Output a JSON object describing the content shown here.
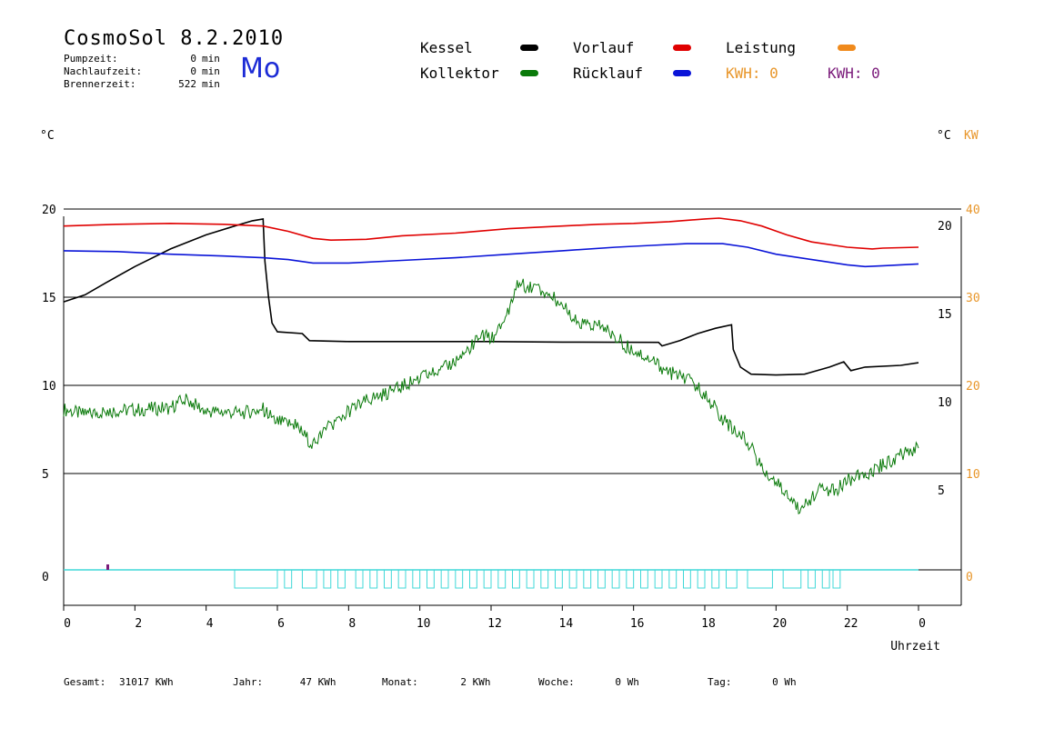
{
  "header": {
    "title": "CosmoSol 8.2.2010",
    "weekday": "Mo",
    "stats": [
      {
        "label": "Pumpzeit:",
        "value": "0",
        "unit": "min"
      },
      {
        "label": "Nachlaufzeit:",
        "value": "0",
        "unit": "min"
      },
      {
        "label": "Brennerzeit:",
        "value": "522",
        "unit": "min"
      }
    ]
  },
  "legend": [
    {
      "label": "Kessel",
      "color": "#000000"
    },
    {
      "label": "Vorlauf",
      "color": "#e00000"
    },
    {
      "label": "Leistung",
      "color": "#f08a1c"
    },
    {
      "label": "Kollektor",
      "color": "#0a7a0a"
    },
    {
      "label": "Rücklauf",
      "color": "#0a14d8"
    }
  ],
  "kwh": [
    {
      "label": "KWH:",
      "value": "0",
      "color": "#e8962a"
    },
    {
      "label": "KWH:",
      "value": "0",
      "color": "#7a1a7a"
    }
  ],
  "axes": {
    "left_unit": "°C",
    "right_unit": "°C",
    "right_unit2": "KW",
    "xlabel": "Uhrzeit"
  },
  "footer": [
    {
      "label": "Gesamt:",
      "value": "31017 KWh"
    },
    {
      "label": "Jahr:",
      "value": "47 KWh"
    },
    {
      "label": "Monat:",
      "value": "2 KWh"
    },
    {
      "label": "Woche:",
      "value": "0 Wh"
    },
    {
      "label": "Tag:",
      "value": "0 Wh"
    }
  ],
  "colors": {
    "grid": "#000000",
    "kw_axis": "#e8962a",
    "pump": "#40d8d8",
    "marker": "#7a1a7a"
  },
  "chart_data": {
    "type": "line",
    "xlabel": "Uhrzeit",
    "x_ticks": [
      "0",
      "2",
      "4",
      "6",
      "8",
      "10",
      "12",
      "14",
      "16",
      "18",
      "20",
      "22",
      "0"
    ],
    "xlim": [
      0,
      24
    ],
    "ylim": [
      -1.5,
      21
    ],
    "y_left_ticks": [
      "20",
      "15",
      "10",
      "5",
      "0"
    ],
    "y_right_c_ticks": [
      "20",
      "15",
      "10",
      "5"
    ],
    "y_right_kw_ticks": [
      "40",
      "30",
      "20",
      "10",
      "0"
    ],
    "grid": true,
    "series": [
      {
        "name": "Kessel",
        "color": "#000000",
        "points": [
          [
            0,
            15.2
          ],
          [
            0.6,
            15.6
          ],
          [
            1.2,
            16.3
          ],
          [
            2,
            17.2
          ],
          [
            3,
            18.2
          ],
          [
            4,
            19.0
          ],
          [
            4.8,
            19.5
          ],
          [
            5.3,
            19.8
          ],
          [
            5.6,
            19.9
          ],
          [
            5.65,
            17.5
          ],
          [
            5.75,
            15.5
          ],
          [
            5.85,
            14.0
          ],
          [
            6.0,
            13.5
          ],
          [
            6.7,
            13.4
          ],
          [
            6.9,
            13.0
          ],
          [
            8,
            12.95
          ],
          [
            10,
            12.95
          ],
          [
            12,
            12.95
          ],
          [
            14,
            12.92
          ],
          [
            16.7,
            12.9
          ],
          [
            16.8,
            12.7
          ],
          [
            17.3,
            13.0
          ],
          [
            17.8,
            13.4
          ],
          [
            18.3,
            13.7
          ],
          [
            18.75,
            13.9
          ],
          [
            18.8,
            12.5
          ],
          [
            19.0,
            11.5
          ],
          [
            19.3,
            11.1
          ],
          [
            20,
            11.05
          ],
          [
            20.8,
            11.1
          ],
          [
            21.5,
            11.5
          ],
          [
            21.9,
            11.8
          ],
          [
            22.1,
            11.3
          ],
          [
            22.5,
            11.5
          ],
          [
            23.5,
            11.6
          ],
          [
            24,
            11.75
          ]
        ]
      },
      {
        "name": "Vorlauf",
        "color": "#e00000",
        "points": [
          [
            0,
            19.5
          ],
          [
            1.5,
            19.6
          ],
          [
            3,
            19.65
          ],
          [
            4.5,
            19.6
          ],
          [
            5.6,
            19.5
          ],
          [
            6.3,
            19.2
          ],
          [
            7.0,
            18.8
          ],
          [
            7.5,
            18.7
          ],
          [
            8.5,
            18.75
          ],
          [
            9.5,
            18.95
          ],
          [
            11,
            19.1
          ],
          [
            12.5,
            19.35
          ],
          [
            14,
            19.5
          ],
          [
            15,
            19.6
          ],
          [
            16,
            19.65
          ],
          [
            17,
            19.75
          ],
          [
            18,
            19.9
          ],
          [
            18.4,
            19.95
          ],
          [
            19,
            19.8
          ],
          [
            19.6,
            19.5
          ],
          [
            20.3,
            19.0
          ],
          [
            21,
            18.6
          ],
          [
            22,
            18.3
          ],
          [
            22.7,
            18.2
          ],
          [
            23,
            18.25
          ],
          [
            24,
            18.3
          ]
        ]
      },
      {
        "name": "Rücklauf",
        "color": "#0a14d8",
        "points": [
          [
            0,
            18.1
          ],
          [
            1.5,
            18.05
          ],
          [
            3,
            17.9
          ],
          [
            4.5,
            17.8
          ],
          [
            5.6,
            17.7
          ],
          [
            6.3,
            17.6
          ],
          [
            7.0,
            17.4
          ],
          [
            8,
            17.4
          ],
          [
            9.5,
            17.55
          ],
          [
            11,
            17.7
          ],
          [
            12.5,
            17.9
          ],
          [
            14,
            18.1
          ],
          [
            15.5,
            18.3
          ],
          [
            16.5,
            18.4
          ],
          [
            17.5,
            18.5
          ],
          [
            18.5,
            18.5
          ],
          [
            19.2,
            18.3
          ],
          [
            20,
            17.9
          ],
          [
            21,
            17.6
          ],
          [
            22,
            17.3
          ],
          [
            22.5,
            17.2
          ],
          [
            23,
            17.25
          ],
          [
            24,
            17.35
          ]
        ]
      },
      {
        "name": "Kollektor",
        "color": "#0a7a0a",
        "points": [
          [
            0,
            9.1
          ],
          [
            0.6,
            8.8
          ],
          [
            1.2,
            9.0
          ],
          [
            2.2,
            9.1
          ],
          [
            3.0,
            9.2
          ],
          [
            3.4,
            9.7
          ],
          [
            4.0,
            9.0
          ],
          [
            5.0,
            8.9
          ],
          [
            5.6,
            9.1
          ],
          [
            6.0,
            8.4
          ],
          [
            6.5,
            8.2
          ],
          [
            7.0,
            7.1
          ],
          [
            7.4,
            8.0
          ],
          [
            8.0,
            9.0
          ],
          [
            8.6,
            9.7
          ],
          [
            9.2,
            10.1
          ],
          [
            10,
            10.9
          ],
          [
            10.6,
            11.3
          ],
          [
            11.3,
            12.3
          ],
          [
            11.7,
            13.3
          ],
          [
            12.1,
            13.1
          ],
          [
            12.5,
            14.8
          ],
          [
            12.7,
            16.2
          ],
          [
            13.3,
            16.0
          ],
          [
            13.9,
            15.2
          ],
          [
            14.5,
            14.0
          ],
          [
            15.2,
            13.7
          ],
          [
            15.8,
            12.7
          ],
          [
            16.5,
            11.9
          ],
          [
            17.0,
            11.2
          ],
          [
            17.5,
            10.8
          ],
          [
            18.0,
            10.0
          ],
          [
            18.6,
            8.3
          ],
          [
            19.2,
            7.3
          ],
          [
            19.6,
            5.8
          ],
          [
            20.2,
            4.5
          ],
          [
            20.7,
            3.3
          ],
          [
            21.2,
            4.6
          ],
          [
            21.7,
            4.5
          ],
          [
            22.0,
            5.1
          ],
          [
            22.5,
            5.4
          ],
          [
            23.0,
            6.0
          ],
          [
            23.5,
            6.5
          ],
          [
            24,
            6.9
          ]
        ]
      }
    ],
    "pump_cycles_hours": [
      [
        4.8,
        6.0
      ],
      [
        6.2,
        6.4
      ],
      [
        6.7,
        7.1
      ],
      [
        7.3,
        7.5
      ],
      [
        7.7,
        7.9
      ],
      [
        8.2,
        8.4
      ],
      [
        8.6,
        8.8
      ],
      [
        9.0,
        9.2
      ],
      [
        9.4,
        9.6
      ],
      [
        9.8,
        10.0
      ],
      [
        10.2,
        10.4
      ],
      [
        10.6,
        10.8
      ],
      [
        11.0,
        11.2
      ],
      [
        11.4,
        11.6
      ],
      [
        11.8,
        12.0
      ],
      [
        12.2,
        12.4
      ],
      [
        12.6,
        12.8
      ],
      [
        13.0,
        13.2
      ],
      [
        13.4,
        13.6
      ],
      [
        13.8,
        14.0
      ],
      [
        14.2,
        14.4
      ],
      [
        14.6,
        14.8
      ],
      [
        15.0,
        15.2
      ],
      [
        15.4,
        15.6
      ],
      [
        15.8,
        16.0
      ],
      [
        16.2,
        16.4
      ],
      [
        16.6,
        16.8
      ],
      [
        17.0,
        17.2
      ],
      [
        17.4,
        17.6
      ],
      [
        17.8,
        18.0
      ],
      [
        18.2,
        18.4
      ],
      [
        18.6,
        18.9
      ],
      [
        19.2,
        19.9
      ],
      [
        20.2,
        20.7
      ],
      [
        20.9,
        21.1
      ],
      [
        21.3,
        21.5
      ],
      [
        21.6,
        21.8
      ]
    ]
  }
}
